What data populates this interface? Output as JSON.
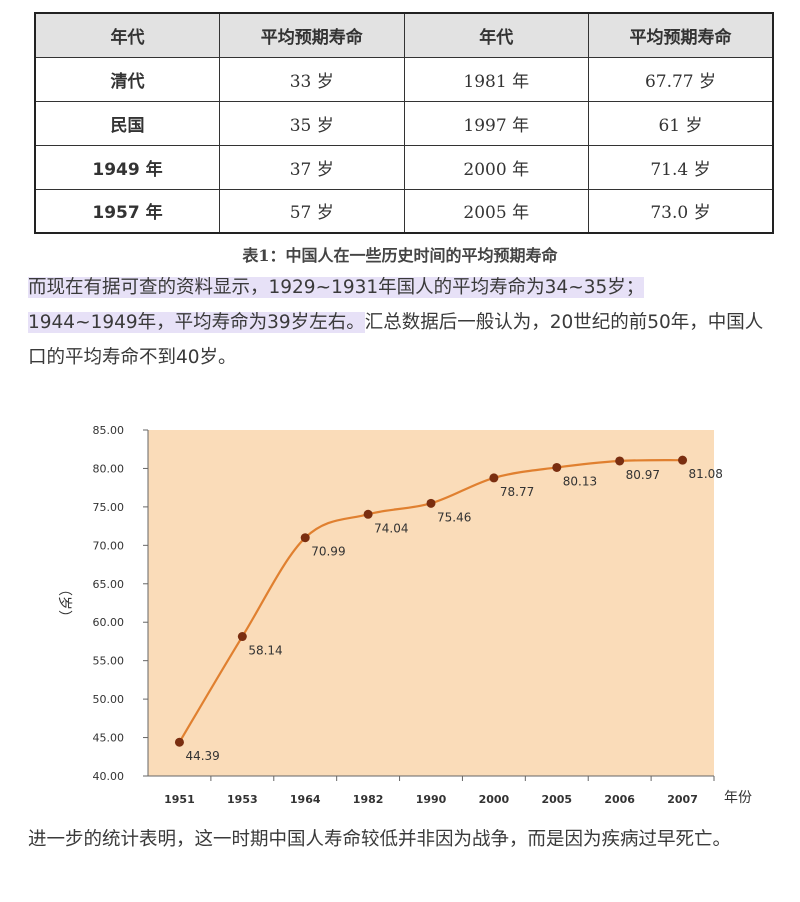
{
  "table": {
    "headers": [
      "年代",
      "平均预期寿命",
      "年代",
      "平均预期寿命"
    ],
    "rows": [
      [
        "清代",
        "33 岁",
        "1981 年",
        "67.77 岁"
      ],
      [
        "民国",
        "35 岁",
        "1997 年",
        "61 岁"
      ],
      [
        "1949 年",
        "37 岁",
        "2000 年",
        "71.4 岁"
      ],
      [
        "1957 年",
        "57 岁",
        "2005 年",
        "73.0 岁"
      ]
    ],
    "caption": "表1：中国人在一些历史时间的平均预期寿命"
  },
  "paragraph1": {
    "highlight1": "而现在有据可查的资料显示，1929~1931年国人的平均寿命为34~35岁；",
    "highlight2": "1944~1949年，平均寿命为39岁左右。",
    "rest": "汇总数据后一般认为，20世纪的前50年，中国人口的平均寿命不到40岁。"
  },
  "chart_data": {
    "type": "line",
    "categories": [
      "1951",
      "1953",
      "1964",
      "1982",
      "1990",
      "2000",
      "2005",
      "2006",
      "2007"
    ],
    "values": [
      44.39,
      58.14,
      70.99,
      74.04,
      75.46,
      78.77,
      80.13,
      80.97,
      81.08
    ],
    "data_labels": [
      "44.39",
      "58.14",
      "70.99",
      "74.04",
      "75.46",
      "78.77",
      "80.13",
      "80.97",
      "81.08"
    ],
    "y_ticks": [
      "40.00",
      "45.00",
      "50.00",
      "55.00",
      "60.00",
      "65.00",
      "70.00",
      "75.00",
      "80.00",
      "85.00"
    ],
    "ylim": [
      40,
      85
    ],
    "xlabel": "年份",
    "ylabel": "（岁）",
    "grid": false,
    "colors": {
      "plot_bg": "#fadcb9",
      "line": "#e08030",
      "marker": "#7a2e10"
    }
  },
  "paragraph2": "进一步的统计表明，这一时期中国人寿命较低并非因为战争，而是因为疾病过早死亡。"
}
